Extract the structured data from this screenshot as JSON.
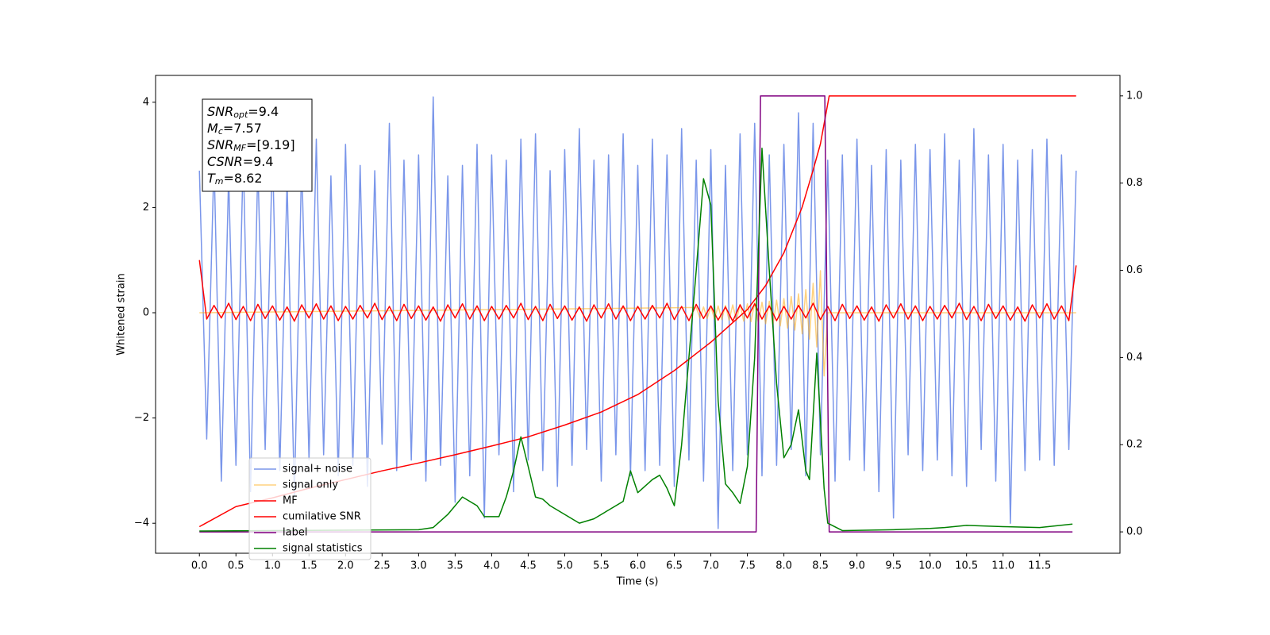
{
  "chart_data": {
    "type": "line",
    "xlabel": "Time (s)",
    "ylabel": "Whitened strain",
    "xlim": [
      -0.6,
      12.6
    ],
    "ylim": [
      -4.57,
      4.51
    ],
    "y2lim": [
      -0.049,
      1.047
    ],
    "grid": false,
    "legend": "lower left",
    "xticks": [
      {
        "value": 0,
        "label": "0.0"
      },
      0.5,
      {
        "value": 1,
        "label": "1.0"
      },
      1.5,
      {
        "value": 2,
        "label": "2.0"
      },
      2.5,
      {
        "value": 3,
        "label": "3.0"
      },
      3.5,
      {
        "value": 4,
        "label": "4.0"
      },
      4.5,
      {
        "value": 5,
        "label": "5.0"
      },
      5.5,
      {
        "value": 6,
        "label": "6.0"
      },
      6.5,
      {
        "value": 7,
        "label": "7.0"
      },
      7.5,
      {
        "value": 8,
        "label": "8.0"
      },
      8.5,
      {
        "value": 9,
        "label": "9.0"
      },
      9.5,
      {
        "value": 10,
        "label": "10.0"
      },
      10.5,
      {
        "value": 11,
        "label": "11.0"
      },
      11.5
    ],
    "yticks": [
      {
        "value": -4,
        "label": "−4"
      },
      {
        "value": -2,
        "label": "−2"
      },
      0,
      2,
      4
    ],
    "y2ticks": [
      {
        "value": 0,
        "label": "0.0"
      },
      0.2,
      0.4,
      0.6,
      0.8,
      {
        "value": 1,
        "label": "1.0"
      }
    ],
    "annotations": [
      {
        "symbol": "SNR",
        "sub": "opt",
        "value": "=9.4"
      },
      {
        "symbol": "M",
        "sub": "c",
        "value": "=7.57"
      },
      {
        "symbol": "SNR",
        "sub": "MF",
        "value": "=[9.19]"
      },
      {
        "symbol": "CSNR",
        "value": "=9.4"
      },
      {
        "symbol": "T",
        "sub": "m",
        "value": "=8.62"
      }
    ],
    "x": [
      0,
      0.1,
      0.2,
      0.3,
      0.4,
      0.5,
      0.6,
      0.7,
      0.8,
      0.9,
      1,
      1.1,
      1.2,
      1.3,
      1.4,
      1.5,
      1.6,
      1.7,
      1.8,
      1.9,
      2,
      2.1,
      2.2,
      2.3,
      2.4,
      2.5,
      2.6,
      2.7,
      2.8,
      2.9,
      3,
      3.1,
      3.2,
      3.3,
      3.4,
      3.5,
      3.6,
      3.7,
      3.8,
      3.9,
      4,
      4.1,
      4.2,
      4.3,
      4.4,
      4.5,
      4.6,
      4.7,
      4.8,
      4.9,
      5,
      5.1,
      5.2,
      5.3,
      5.4,
      5.5,
      5.6,
      5.7,
      5.8,
      5.9,
      6,
      6.1,
      6.2,
      6.3,
      6.4,
      6.5,
      6.6,
      6.7,
      6.8,
      6.9,
      7,
      7.1,
      7.2,
      7.3,
      7.4,
      7.5,
      7.6,
      7.7,
      7.8,
      7.9,
      8,
      8.1,
      8.2,
      8.3,
      8.4,
      8.5,
      8.6,
      8.7,
      8.8,
      8.9,
      9,
      9.1,
      9.2,
      9.3,
      9.4,
      9.5,
      9.6,
      9.7,
      9.8,
      9.9,
      10,
      10.1,
      10.2,
      10.3,
      10.4,
      10.5,
      10.6,
      10.7,
      10.8,
      10.9,
      11,
      11.1,
      11.2,
      11.3,
      11.4,
      11.5,
      11.6,
      11.7,
      11.8,
      11.9,
      12
    ],
    "series": [
      {
        "name": "signal+ noise",
        "color": "#4169e1",
        "alpha": 0.7,
        "values": [
          2.7,
          -2.4,
          2.9,
          -3.2,
          2.6,
          -2.9,
          3.0,
          -3.4,
          2.8,
          -2.6,
          3.1,
          -3.0,
          2.5,
          -3.5,
          2.9,
          -2.8,
          3.3,
          -2.7,
          2.6,
          -3.1,
          3.2,
          -2.9,
          2.8,
          -3.3,
          2.7,
          -2.5,
          3.6,
          -3.0,
          2.9,
          -2.8,
          3.0,
          -3.2,
          4.1,
          -2.9,
          2.6,
          -3.6,
          2.8,
          -3.1,
          3.2,
          -3.9,
          3.0,
          -2.7,
          2.9,
          -3.4,
          3.3,
          -2.8,
          3.4,
          -3.0,
          2.7,
          -3.3,
          3.1,
          -2.9,
          3.5,
          -2.6,
          2.9,
          -3.2,
          3.0,
          -2.7,
          3.4,
          -3.1,
          2.8,
          -3.0,
          3.3,
          -2.9,
          3.0,
          -3.3,
          3.5,
          -2.8,
          2.9,
          -3.2,
          3.1,
          -4.1,
          2.8,
          -3.0,
          3.4,
          -2.7,
          3.6,
          -3.1,
          3.0,
          -2.9,
          3.2,
          -2.6,
          3.8,
          -3.1,
          3.6,
          -2.7,
          2.9,
          -3.2,
          3.0,
          -2.8,
          3.3,
          -3.0,
          2.8,
          -3.4,
          3.1,
          -3.9,
          2.9,
          -2.7,
          3.2,
          -3.0,
          3.1,
          -2.8,
          3.4,
          -3.1,
          2.9,
          -3.3,
          3.5,
          -2.6,
          3.0,
          -3.2,
          3.2,
          -4.0,
          2.9,
          -3.0,
          3.1,
          -2.8,
          3.3,
          -2.9,
          3.0,
          -2.6,
          2.7
        ]
      },
      {
        "name": "signal only",
        "color": "#ffa500",
        "alpha": 0.5,
        "x": [
          0,
          6.8,
          6.85,
          6.9,
          6.95,
          7.0,
          7.05,
          7.1,
          7.15,
          7.2,
          7.25,
          7.3,
          7.35,
          7.4,
          7.45,
          7.5,
          7.55,
          7.6,
          7.65,
          7.7,
          7.75,
          7.8,
          7.85,
          7.9,
          7.95,
          8.0,
          8.05,
          8.1,
          8.15,
          8.2,
          8.25,
          8.3,
          8.35,
          8.4,
          8.45,
          8.5,
          8.55,
          8.6,
          12
        ],
        "values": [
          0,
          0.1,
          -0.1,
          0.11,
          -0.11,
          0.12,
          -0.12,
          0.13,
          -0.13,
          0.14,
          -0.14,
          0.15,
          -0.15,
          0.16,
          -0.16,
          0.17,
          -0.17,
          0.19,
          -0.19,
          0.2,
          -0.21,
          0.22,
          -0.23,
          0.24,
          -0.25,
          0.27,
          -0.29,
          0.31,
          -0.33,
          0.36,
          -0.4,
          0.44,
          -0.5,
          0.56,
          -0.65,
          0.8,
          -1.2,
          0,
          0
        ]
      },
      {
        "name": "MF",
        "color": "#ff0000",
        "values": [
          1.0,
          -0.12,
          0.14,
          -0.1,
          0.18,
          -0.13,
          0.12,
          -0.15,
          0.16,
          -0.11,
          0.13,
          -0.14,
          0.11,
          -0.16,
          0.15,
          -0.1,
          0.17,
          -0.12,
          0.13,
          -0.15,
          0.12,
          -0.12,
          0.14,
          -0.1,
          0.18,
          -0.13,
          0.12,
          -0.15,
          0.16,
          -0.11,
          0.13,
          -0.14,
          0.11,
          -0.16,
          0.15,
          -0.1,
          0.17,
          -0.12,
          0.13,
          -0.15,
          0.12,
          -0.12,
          0.14,
          -0.1,
          0.18,
          -0.13,
          0.12,
          -0.15,
          0.16,
          -0.11,
          0.13,
          -0.14,
          0.11,
          -0.16,
          0.15,
          -0.1,
          0.17,
          -0.12,
          0.13,
          -0.15,
          0.12,
          -0.12,
          0.14,
          -0.1,
          0.18,
          -0.13,
          0.12,
          -0.15,
          0.16,
          -0.11,
          0.13,
          -0.14,
          0.11,
          -0.16,
          0.15,
          -0.1,
          0.17,
          -0.12,
          0.13,
          -0.15,
          0.12,
          -0.12,
          0.14,
          -0.1,
          0.18,
          -0.13,
          0.12,
          -0.15,
          0.16,
          -0.11,
          0.13,
          -0.14,
          0.11,
          -0.16,
          0.15,
          -0.1,
          0.17,
          -0.12,
          0.13,
          -0.15,
          0.12,
          -0.12,
          0.14,
          -0.1,
          0.18,
          -0.13,
          0.12,
          -0.15,
          0.16,
          -0.11,
          0.13,
          -0.14,
          0.11,
          -0.16,
          0.15,
          -0.1,
          0.17,
          -0.12,
          0.13,
          -0.15,
          0.9
        ]
      },
      {
        "name": "cumilative SNR",
        "color": "#ff0000",
        "axis": "y2",
        "x": [
          0,
          0.5,
          1,
          1.5,
          2,
          2.5,
          3,
          3.5,
          4,
          4.5,
          5,
          5.5,
          6,
          6.5,
          7,
          7.5,
          7.75,
          8,
          8.25,
          8.4,
          8.5,
          8.62,
          12
        ],
        "values": [
          0.012,
          0.058,
          0.078,
          0.1,
          0.12,
          0.14,
          0.158,
          0.177,
          0.197,
          0.218,
          0.245,
          0.275,
          0.315,
          0.37,
          0.435,
          0.51,
          0.565,
          0.64,
          0.745,
          0.83,
          0.89,
          1.0,
          1.0
        ]
      },
      {
        "name": "label",
        "color": "#800080",
        "axis": "y2",
        "x": [
          0,
          7.62,
          7.68,
          8.56,
          8.62,
          11.95
        ],
        "values": [
          0,
          0,
          1,
          1,
          0,
          0
        ]
      },
      {
        "name": "signal statistics",
        "color": "#008000",
        "axis": "y2",
        "x": [
          0,
          3.0,
          3.2,
          3.4,
          3.6,
          3.8,
          3.9,
          4.1,
          4.2,
          4.3,
          4.4,
          4.5,
          4.6,
          4.7,
          4.8,
          5.0,
          5.2,
          5.4,
          5.6,
          5.8,
          5.9,
          6.0,
          6.2,
          6.3,
          6.4,
          6.5,
          6.6,
          6.7,
          6.8,
          6.9,
          7.0,
          7.1,
          7.2,
          7.3,
          7.4,
          7.5,
          7.6,
          7.7,
          7.8,
          7.9,
          8.0,
          8.1,
          8.2,
          8.3,
          8.35,
          8.45,
          8.55,
          8.6,
          8.8,
          9.5,
          10.0,
          10.2,
          10.5,
          11.0,
          11.5,
          11.95
        ],
        "values": [
          0.002,
          0.005,
          0.01,
          0.04,
          0.08,
          0.06,
          0.035,
          0.035,
          0.08,
          0.14,
          0.218,
          0.15,
          0.08,
          0.075,
          0.06,
          0.04,
          0.02,
          0.03,
          0.05,
          0.07,
          0.14,
          0.09,
          0.12,
          0.13,
          0.1,
          0.06,
          0.2,
          0.4,
          0.6,
          0.81,
          0.75,
          0.3,
          0.11,
          0.09,
          0.065,
          0.15,
          0.4,
          0.88,
          0.6,
          0.34,
          0.17,
          0.2,
          0.28,
          0.14,
          0.12,
          0.41,
          0.1,
          0.02,
          0.003,
          0.005,
          0.008,
          0.01,
          0.015,
          0.012,
          0.01,
          0.018
        ]
      }
    ]
  }
}
